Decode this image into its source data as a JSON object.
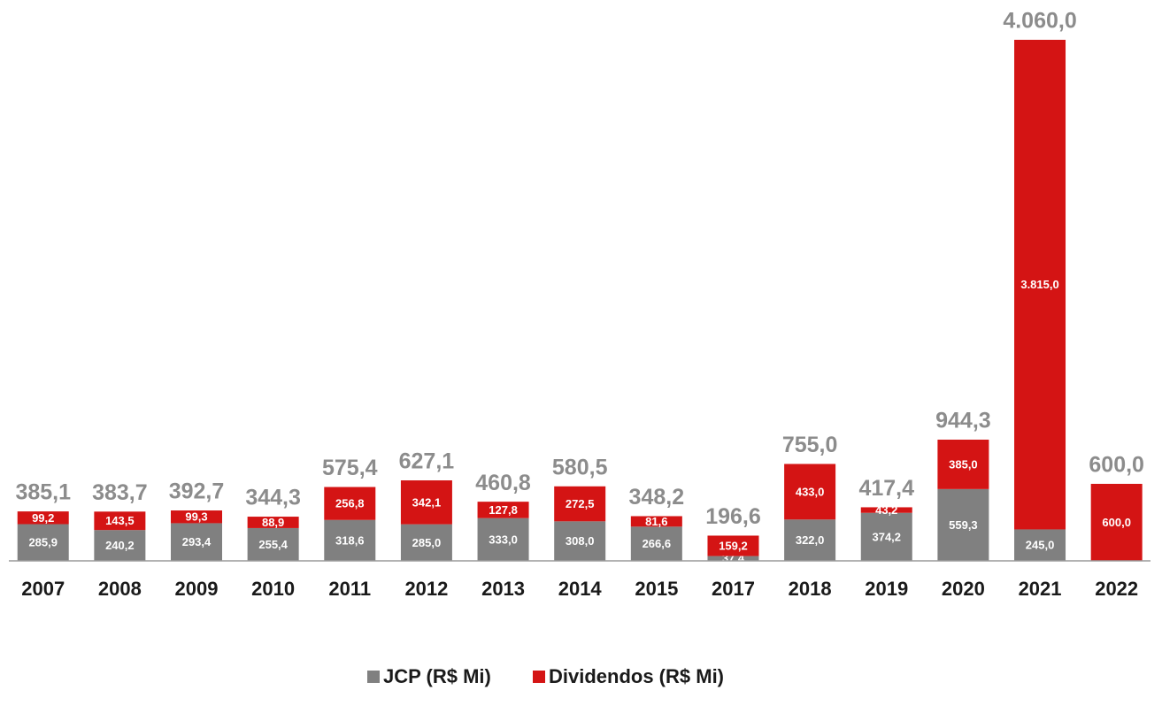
{
  "chart_data": {
    "type": "stacked_bar",
    "categories": [
      "2007",
      "2008",
      "2009",
      "2010",
      "2011",
      "2012",
      "2013",
      "2014",
      "2015",
      "2017",
      "2018",
      "2019",
      "2020",
      "2021",
      "2022"
    ],
    "series": [
      {
        "name": "JCP (R$ Mi)",
        "color": "#808080",
        "values": [
          285.9,
          240.2,
          293.4,
          255.4,
          318.6,
          285.0,
          333.0,
          308.0,
          266.6,
          37.4,
          322.0,
          374.2,
          559.3,
          245.0,
          0
        ],
        "value_labels": [
          "285,9",
          "240,2",
          "293,4",
          "255,4",
          "318,6",
          "285,0",
          "333,0",
          "308,0",
          "266,6",
          "37,4",
          "322,0",
          "374,2",
          "559,3",
          "245,0",
          null
        ]
      },
      {
        "name": "Dividendos (R$ Mi)",
        "color": "#d41414",
        "values": [
          99.2,
          143.5,
          99.3,
          88.9,
          256.8,
          342.1,
          127.8,
          272.5,
          81.6,
          159.2,
          433.0,
          43.2,
          385.0,
          3815.0,
          600.0
        ],
        "value_labels": [
          "99,2",
          "143,5",
          "99,3",
          "88,9",
          "256,8",
          "342,1",
          "127,8",
          "272,5",
          "81,6",
          "159,2",
          "433,0",
          "43,2",
          "385,0",
          "3.815,0",
          "600,0"
        ]
      }
    ],
    "totals": [
      385.1,
      383.7,
      392.7,
      344.3,
      575.4,
      627.1,
      460.8,
      580.5,
      348.2,
      196.6,
      755.0,
      417.4,
      944.3,
      4060.0,
      600.0
    ],
    "total_labels": [
      "385,1",
      "383,7",
      "392,7",
      "344,3",
      "575,4",
      "627,1",
      "460,8",
      "580,5",
      "348,2",
      "196,6",
      "755,0",
      "417,4",
      "944,3",
      "4.060,0",
      "600,0"
    ],
    "ylim": [
      0,
      4060
    ],
    "legend": "bottom"
  }
}
